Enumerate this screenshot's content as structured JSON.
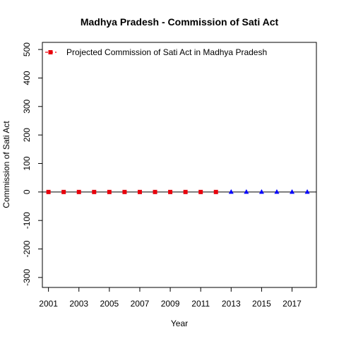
{
  "chart_data": {
    "type": "scatter",
    "title": "Madhya Pradesh  -  Commission of Sati Act",
    "xlabel": "Year",
    "ylabel": "Commission of Sati Act",
    "xlim": [
      2000.6,
      2018.6
    ],
    "ylim": [
      -335,
      525
    ],
    "x_ticks": [
      2001,
      2003,
      2005,
      2007,
      2009,
      2011,
      2013,
      2015,
      2017
    ],
    "y_ticks": [
      -300,
      -200,
      -100,
      0,
      100,
      200,
      300,
      400,
      500
    ],
    "reference_line_y": 0,
    "legend": {
      "position": "top-left",
      "label": "Projected  Commission of Sati Act  in  Madhya Pradesh"
    },
    "series": [
      {
        "name": "Projected  Commission of Sati Act  in  Madhya Pradesh",
        "marker": "square",
        "color": "#e8000b",
        "line_style": "dashed",
        "x": [
          2001,
          2002,
          2003,
          2004,
          2005,
          2006,
          2007,
          2008,
          2009,
          2010,
          2011,
          2012
        ],
        "y": [
          0,
          0,
          0,
          0,
          0,
          0,
          0,
          0,
          0,
          0,
          0,
          0
        ]
      },
      {
        "marker": "triangle",
        "color": "#0000ff",
        "x": [
          2013,
          2014,
          2015,
          2016,
          2017,
          2018
        ],
        "y": [
          0,
          0,
          0,
          0,
          0,
          0
        ]
      }
    ]
  }
}
